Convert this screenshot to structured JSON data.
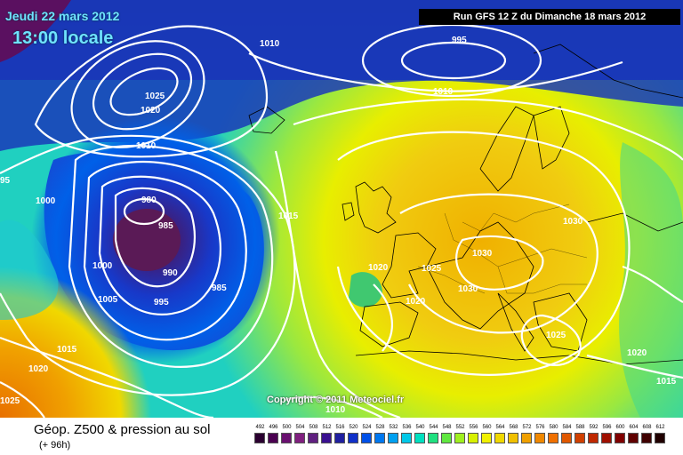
{
  "map": {
    "date_label": "Jeudi 22 mars 2012",
    "time_label": "13:00 locale",
    "run_label": "Run GFS 12 Z du Dimanche 18 mars 2012",
    "copyright": "Copyright © 2011 Meteociel.fr",
    "isobar_labels": [
      {
        "id": "1010-greenland",
        "text": "1010"
      },
      {
        "id": "1025-iceland",
        "text": "1025"
      },
      {
        "id": "1020-iceland",
        "text": "1020"
      },
      {
        "id": "1010-northatlantic",
        "text": "1010"
      },
      {
        "id": "980-low",
        "text": "980"
      },
      {
        "id": "985-low",
        "text": "985"
      },
      {
        "id": "990-low",
        "text": "990"
      },
      {
        "id": "985-low-b",
        "text": "985"
      },
      {
        "id": "995-low",
        "text": "995"
      },
      {
        "id": "1000-west",
        "text": "1000"
      },
      {
        "id": "1000-west-b",
        "text": "1000"
      },
      {
        "id": "1005-west",
        "text": "1005"
      },
      {
        "id": "1015-west",
        "text": "1015"
      },
      {
        "id": "1020-southwest",
        "text": "1020"
      },
      {
        "id": "1025-corner",
        "text": "1025"
      },
      {
        "id": "95-edge",
        "text": "95"
      },
      {
        "id": "1015-mid",
        "text": "1015"
      },
      {
        "id": "995-north",
        "text": "995"
      },
      {
        "id": "1010-north",
        "text": "1010"
      },
      {
        "id": "1020-france",
        "text": "1020"
      },
      {
        "id": "1025-france",
        "text": "1025"
      },
      {
        "id": "1030-central",
        "text": "1030"
      },
      {
        "id": "1030-central-b",
        "text": "1030"
      },
      {
        "id": "1020-iberia",
        "text": "1020"
      },
      {
        "id": "1030-east",
        "text": "1030"
      },
      {
        "id": "1025-balkans",
        "text": "1025"
      },
      {
        "id": "1020-east",
        "text": "1020"
      },
      {
        "id": "1015-east",
        "text": "1015"
      },
      {
        "id": "1010-south",
        "text": "1010"
      }
    ]
  },
  "footer": {
    "title": "Géop. Z500 & pression au sol",
    "subtitle": "(+ 96h)"
  },
  "legend": {
    "labels": [
      "492",
      "496",
      "500",
      "504",
      "508",
      "512",
      "516",
      "520",
      "524",
      "528",
      "532",
      "536",
      "540",
      "544",
      "548",
      "552",
      "556",
      "560",
      "564",
      "568",
      "572",
      "576",
      "580",
      "584",
      "588",
      "592",
      "596",
      "600",
      "604",
      "608",
      "612"
    ],
    "colors": [
      "#2a0030",
      "#4a0050",
      "#6a1070",
      "#80207f",
      "#602080",
      "#3a1090",
      "#2020a0",
      "#1030c8",
      "#0050e8",
      "#0078f0",
      "#00a0f0",
      "#00c8e8",
      "#00e0c0",
      "#20e080",
      "#60e840",
      "#a0f020",
      "#d8f000",
      "#f0f000",
      "#f0d800",
      "#f0c000",
      "#f0a000",
      "#f08800",
      "#f07000",
      "#e05800",
      "#d04000",
      "#c02800",
      "#a01000",
      "#800000",
      "#600000",
      "#400000",
      "#200000"
    ]
  }
}
